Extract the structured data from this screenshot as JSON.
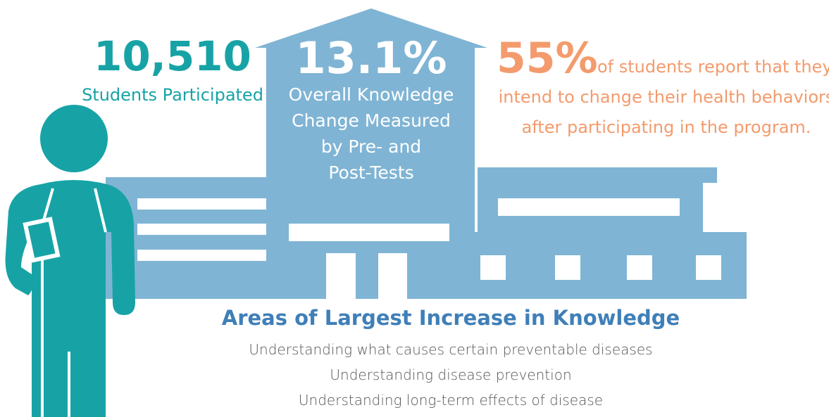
{
  "participants": {
    "value": "10,510",
    "label": "Students Participated"
  },
  "knowledge_change": {
    "value": "13.1%",
    "label_lines": [
      "Overall Knowledge",
      "Change Measured",
      "by Pre- and",
      "Post-Tests"
    ]
  },
  "intent": {
    "value": "55%",
    "label_lines": [
      "of students report that they",
      "intend to change their health behaviors",
      "after participating in the program."
    ]
  },
  "areas": {
    "title": "Areas of Largest Increase in Knowledge",
    "items": [
      "Understanding what causes certain preventable diseases",
      "Understanding disease prevention",
      "Understanding long-term effects of disease"
    ]
  }
}
